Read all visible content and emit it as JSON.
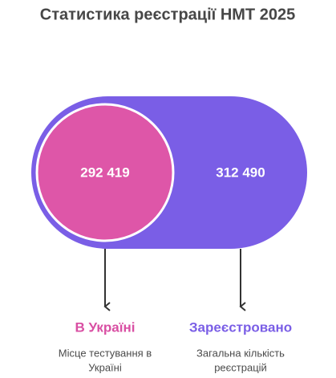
{
  "title": "Статистика реєстрації НМТ 2025",
  "items": [
    {
      "value": "292 419",
      "label": "В Україні",
      "description": [
        "Місце тестування в",
        "Україні"
      ]
    },
    {
      "value": "312 490",
      "label": "Зареєстровано",
      "description": [
        "Загальна кількість",
        "реєстрацій"
      ]
    }
  ]
}
